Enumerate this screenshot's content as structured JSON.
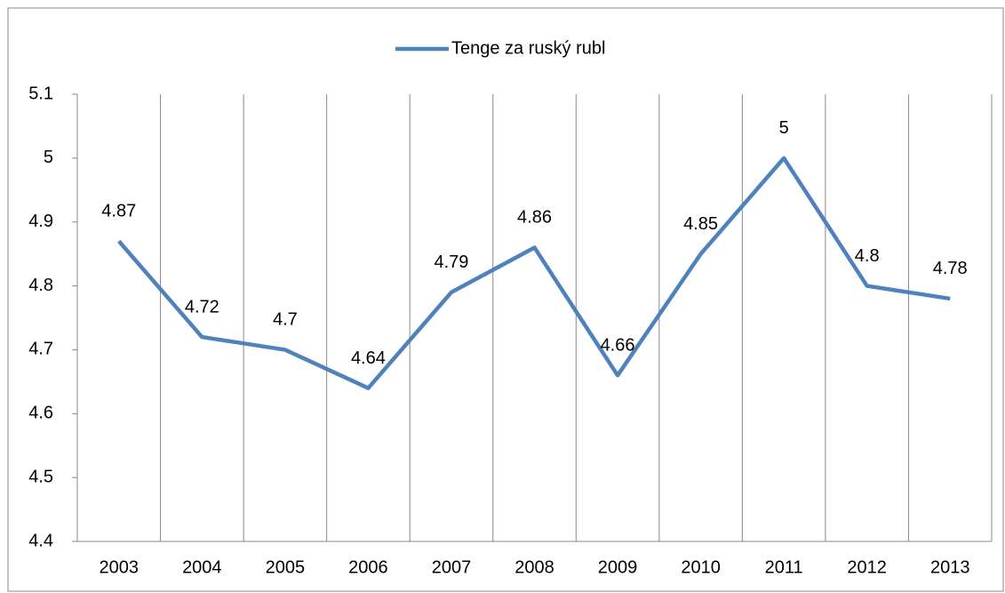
{
  "chart_data": {
    "type": "line",
    "categories": [
      "2003",
      "2004",
      "2005",
      "2006",
      "2007",
      "2008",
      "2009",
      "2010",
      "2011",
      "2012",
      "2013"
    ],
    "series": [
      {
        "name": "Tenge za ruský rubl",
        "color": "#4f81bd",
        "values": [
          4.87,
          4.72,
          4.7,
          4.64,
          4.79,
          4.86,
          4.66,
          4.85,
          5,
          4.8,
          4.78
        ]
      }
    ],
    "ylim": [
      4.4,
      5.1
    ],
    "yticks": [
      4.4,
      4.5,
      4.6,
      4.7,
      4.8,
      4.9,
      5,
      5.1
    ],
    "grid": "x",
    "legend": "top",
    "data_labels": true
  }
}
